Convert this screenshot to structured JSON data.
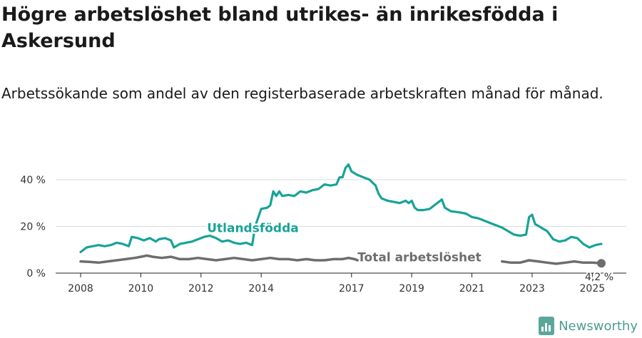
{
  "title": "Högre arbetslöshet bland utrikes- än inrikesfödda i Askersund",
  "subtitle": "Arbetssökande som andel av den registerbaserade arbetskraften månad för månad.",
  "brand": {
    "name": "Newsworthy",
    "color": "#5aa79a"
  },
  "chart_data": {
    "type": "line",
    "title": "Högre arbetslöshet bland utrikes- än inrikesfödda i Askersund",
    "subtitle": "Arbetssökande som andel av den registerbaserade arbetskraften månad för månad.",
    "xlabel": "",
    "ylabel": "",
    "xlim": [
      2008.0,
      2025.5
    ],
    "ylim": [
      0,
      45
    ],
    "y_ticks": [
      0,
      20,
      40
    ],
    "y_tick_labels": [
      "0 %",
      "20 %",
      "40 %"
    ],
    "x_ticks": [
      2008,
      2010,
      2012,
      2014,
      2017,
      2019,
      2021,
      2023,
      2025
    ],
    "grid": "horizontal",
    "legend": "inline labels",
    "end_label": "4,2 %",
    "series": [
      {
        "name": "Utlandsfödda",
        "color": "#17a398",
        "label_at": [
          2012.2,
          17.5
        ],
        "points": [
          [
            2008.0,
            9.0
          ],
          [
            2008.2,
            11.0
          ],
          [
            2008.4,
            11.5
          ],
          [
            2008.6,
            12.0
          ],
          [
            2008.8,
            11.5
          ],
          [
            2009.0,
            12.0
          ],
          [
            2009.2,
            13.0
          ],
          [
            2009.4,
            12.5
          ],
          [
            2009.6,
            11.5
          ],
          [
            2009.7,
            15.5
          ],
          [
            2009.9,
            15.0
          ],
          [
            2010.1,
            14.0
          ],
          [
            2010.3,
            15.0
          ],
          [
            2010.5,
            13.5
          ],
          [
            2010.6,
            14.5
          ],
          [
            2010.8,
            15.0
          ],
          [
            2011.0,
            14.0
          ],
          [
            2011.1,
            11.0
          ],
          [
            2011.3,
            12.5
          ],
          [
            2011.5,
            13.0
          ],
          [
            2011.7,
            13.5
          ],
          [
            2011.9,
            14.5
          ],
          [
            2012.1,
            15.5
          ],
          [
            2012.3,
            16.0
          ],
          [
            2012.5,
            15.0
          ],
          [
            2012.7,
            13.5
          ],
          [
            2012.9,
            14.0
          ],
          [
            2013.1,
            13.0
          ],
          [
            2013.3,
            12.5
          ],
          [
            2013.5,
            13.0
          ],
          [
            2013.7,
            12.0
          ],
          [
            2013.8,
            20.0
          ],
          [
            2014.0,
            27.5
          ],
          [
            2014.2,
            28.0
          ],
          [
            2014.3,
            29.0
          ],
          [
            2014.4,
            35.0
          ],
          [
            2014.5,
            33.0
          ],
          [
            2014.6,
            35.0
          ],
          [
            2014.7,
            33.0
          ],
          [
            2014.9,
            33.5
          ],
          [
            2015.1,
            33.0
          ],
          [
            2015.3,
            35.0
          ],
          [
            2015.5,
            34.5
          ],
          [
            2015.7,
            35.5
          ],
          [
            2015.9,
            36.0
          ],
          [
            2016.1,
            38.0
          ],
          [
            2016.3,
            37.5
          ],
          [
            2016.5,
            38.0
          ],
          [
            2016.6,
            41.0
          ],
          [
            2016.7,
            41.0
          ],
          [
            2016.8,
            45.0
          ],
          [
            2016.9,
            46.5
          ],
          [
            2017.0,
            43.5
          ],
          [
            2017.2,
            42.0
          ],
          [
            2017.4,
            41.0
          ],
          [
            2017.6,
            40.0
          ],
          [
            2017.8,
            37.5
          ],
          [
            2017.9,
            34.0
          ],
          [
            2018.0,
            32.0
          ],
          [
            2018.2,
            31.0
          ],
          [
            2018.4,
            30.5
          ],
          [
            2018.6,
            30.0
          ],
          [
            2018.8,
            31.0
          ],
          [
            2018.9,
            30.0
          ],
          [
            2019.0,
            31.0
          ],
          [
            2019.1,
            28.0
          ],
          [
            2019.2,
            27.0
          ],
          [
            2019.4,
            27.0
          ],
          [
            2019.6,
            27.5
          ],
          [
            2019.8,
            29.5
          ],
          [
            2020.0,
            31.5
          ],
          [
            2020.1,
            28.0
          ],
          [
            2020.3,
            26.5
          ],
          [
            2020.6,
            26.0
          ],
          [
            2020.8,
            25.5
          ],
          [
            2021.0,
            24.0
          ],
          [
            2021.2,
            23.5
          ],
          [
            2021.4,
            22.5
          ],
          [
            2021.6,
            21.5
          ],
          [
            2021.8,
            20.5
          ],
          [
            2022.0,
            19.5
          ],
          [
            2022.2,
            18.0
          ],
          [
            2022.4,
            16.5
          ],
          [
            2022.6,
            16.0
          ],
          [
            2022.8,
            16.5
          ],
          [
            2022.9,
            24.0
          ],
          [
            2023.0,
            25.0
          ],
          [
            2023.1,
            21.0
          ],
          [
            2023.3,
            19.5
          ],
          [
            2023.5,
            18.0
          ],
          [
            2023.7,
            14.5
          ],
          [
            2023.9,
            13.5
          ],
          [
            2024.1,
            14.0
          ],
          [
            2024.3,
            15.5
          ],
          [
            2024.5,
            15.0
          ],
          [
            2024.7,
            12.5
          ],
          [
            2024.9,
            11.0
          ],
          [
            2025.1,
            12.0
          ],
          [
            2025.3,
            12.5
          ]
        ]
      },
      {
        "name": "Total arbetslöshet",
        "color": "#6d6d6d",
        "label_at": [
          2017.2,
          5.0
        ],
        "points": [
          [
            2008.0,
            5.0
          ],
          [
            2008.3,
            4.8
          ],
          [
            2008.6,
            4.5
          ],
          [
            2008.9,
            5.0
          ],
          [
            2009.2,
            5.5
          ],
          [
            2009.5,
            6.0
          ],
          [
            2009.8,
            6.5
          ],
          [
            2010.0,
            7.0
          ],
          [
            2010.2,
            7.5
          ],
          [
            2010.4,
            7.0
          ],
          [
            2010.7,
            6.5
          ],
          [
            2011.0,
            7.0
          ],
          [
            2011.3,
            6.0
          ],
          [
            2011.6,
            6.0
          ],
          [
            2011.9,
            6.5
          ],
          [
            2012.2,
            6.0
          ],
          [
            2012.5,
            5.5
          ],
          [
            2012.8,
            6.0
          ],
          [
            2013.1,
            6.5
          ],
          [
            2013.4,
            6.0
          ],
          [
            2013.7,
            5.5
          ],
          [
            2014.0,
            6.0
          ],
          [
            2014.3,
            6.5
          ],
          [
            2014.6,
            6.0
          ],
          [
            2014.9,
            6.0
          ],
          [
            2015.2,
            5.5
          ],
          [
            2015.5,
            6.0
          ],
          [
            2015.8,
            5.5
          ],
          [
            2016.1,
            5.5
          ],
          [
            2016.4,
            6.0
          ],
          [
            2016.7,
            6.0
          ],
          [
            2016.9,
            6.5
          ],
          [
            2017.1,
            6.0
          ],
          [
            2017.2,
            5.5
          ],
          null,
          [
            2022.0,
            5.0
          ],
          [
            2022.3,
            4.5
          ],
          [
            2022.6,
            4.5
          ],
          [
            2022.9,
            5.5
          ],
          [
            2023.2,
            5.0
          ],
          [
            2023.5,
            4.5
          ],
          [
            2023.8,
            4.0
          ],
          [
            2024.1,
            4.5
          ],
          [
            2024.4,
            5.0
          ],
          [
            2024.7,
            4.5
          ],
          [
            2025.0,
            4.5
          ],
          [
            2025.3,
            4.2
          ]
        ]
      }
    ]
  }
}
